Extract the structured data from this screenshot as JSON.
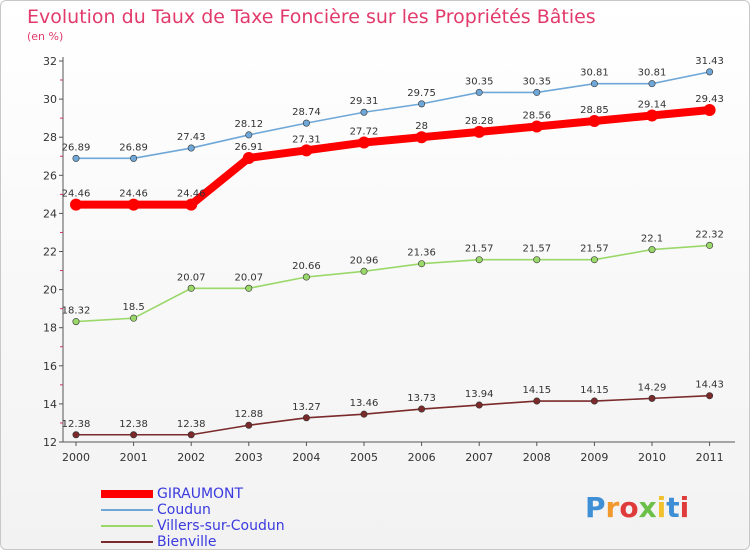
{
  "title": "Evolution du Taux de Taxe Foncière sur les Propriétés Bâties",
  "unit_label": "(en %)",
  "logo": {
    "text": "Proxiti",
    "letter_colors": [
      "#3e8fd6",
      "#f2992e",
      "#e03b3b",
      "#6cc04a",
      "#f2c12e",
      "#3e8fd6",
      "#e03b3b"
    ]
  },
  "chart_data": {
    "type": "line",
    "categories": [
      "2000",
      "2001",
      "2002",
      "2003",
      "2004",
      "2005",
      "2006",
      "2007",
      "2008",
      "2009",
      "2010",
      "2011"
    ],
    "ylim": [
      12,
      32
    ],
    "yticks": [
      12,
      14,
      16,
      18,
      20,
      22,
      24,
      26,
      28,
      30,
      32
    ],
    "grid": false,
    "legend_placement": "bottom-left",
    "series": [
      {
        "name": "GIRAUMONT",
        "color": "#ff0000",
        "emphasis": true,
        "values": [
          24.46,
          24.46,
          24.46,
          26.91,
          27.31,
          27.72,
          28,
          28.28,
          28.56,
          28.85,
          29.14,
          29.43
        ],
        "labels": [
          "24.46",
          "24.46",
          "24.46",
          "26.91",
          "27.31",
          "27.72",
          "28",
          "28.28",
          "28.56",
          "28.85",
          "29.14",
          "29.43"
        ]
      },
      {
        "name": "Coudun",
        "color": "#6fa8d8",
        "values": [
          26.89,
          26.89,
          27.43,
          28.12,
          28.74,
          29.31,
          29.75,
          30.35,
          30.35,
          30.81,
          30.81,
          31.43
        ],
        "labels": [
          "26.89",
          "26.89",
          "27.43",
          "28.12",
          "28.74",
          "29.31",
          "29.75",
          "30.35",
          "30.35",
          "30.81",
          "30.81",
          "31.43"
        ]
      },
      {
        "name": "Villers-sur-Coudun",
        "color": "#9bd86a",
        "values": [
          18.32,
          18.5,
          20.07,
          20.07,
          20.66,
          20.96,
          21.36,
          21.57,
          21.57,
          21.57,
          22.1,
          22.32
        ],
        "labels": [
          "18.32",
          "18.5",
          "20.07",
          "20.07",
          "20.66",
          "20.96",
          "21.36",
          "21.57",
          "21.57",
          "21.57",
          "22.1",
          "22.32"
        ]
      },
      {
        "name": "Bienville",
        "color": "#7a2a2a",
        "values": [
          12.38,
          12.38,
          12.38,
          12.88,
          13.27,
          13.46,
          13.73,
          13.94,
          14.15,
          14.15,
          14.29,
          14.43
        ],
        "labels": [
          "12.38",
          "12.38",
          "12.38",
          "12.88",
          "13.27",
          "13.46",
          "13.73",
          "13.94",
          "14.15",
          "14.15",
          "14.29",
          "14.43"
        ]
      }
    ]
  }
}
